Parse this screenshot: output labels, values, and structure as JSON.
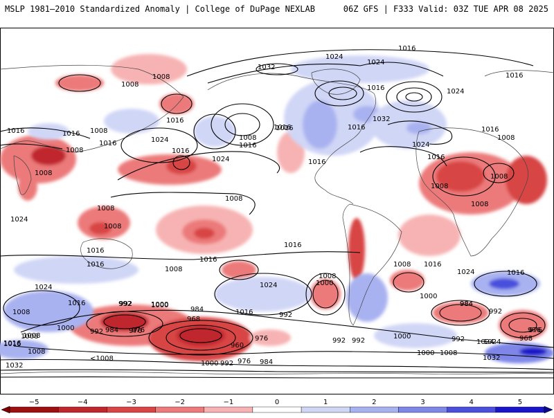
{
  "header": {
    "title": "MSLP 1981–2010 Standardized Anomaly | College of DuPage NEXLAB",
    "run_info": "06Z GFS | F333 Valid: 03Z TUE APR 08 2025"
  },
  "colorbar": {
    "ticks": [
      "−5",
      "−4",
      "−3",
      "−2",
      "−1",
      "0",
      "1",
      "2",
      "3",
      "4",
      "5"
    ],
    "colors": [
      "#9e0f0f",
      "#c0272d",
      "#d84545",
      "#ec7a7a",
      "#f7b3b3",
      "#ffffff",
      "#d0d6f6",
      "#a9b2f0",
      "#7e87e8",
      "#4a4fdd",
      "#1a16c8"
    ]
  },
  "contour_labels": [
    "1016",
    "1024",
    "1032",
    "1024",
    "1016",
    "1016",
    "1008",
    "1024",
    "1016",
    "1016",
    "1008",
    "1008",
    "1016",
    "1008",
    "1008",
    "1016",
    "1016",
    "1016",
    "1024",
    "1016",
    "1024",
    "1008",
    "1016",
    "1016",
    "1032",
    "1016",
    "1024",
    "1016",
    "1008",
    "1008",
    "1008",
    "1016",
    "1008",
    "1008",
    "1008",
    "1016",
    "1008",
    "1016",
    "1024",
    "1024",
    "1016",
    "1008",
    "1008",
    "1016",
    "1024",
    "1024",
    "1008",
    "1016",
    "1000",
    "1000",
    "1016",
    "1008",
    "1016",
    "992",
    "984",
    "968",
    "1000",
    "1008",
    "984",
    "992",
    "992",
    "976",
    "1024",
    "1000",
    "1016",
    "1008",
    "992",
    "984",
    "976",
    "1000",
    "992",
    "976",
    "984",
    "1000",
    "992",
    "976",
    "960",
    "976",
    "992",
    "992",
    "1000",
    "992",
    "984",
    "976",
    "968",
    "1024",
    "1032",
    "1016",
    "1008",
    "1000",
    "1008",
    "<1008",
    "1032",
    "1016"
  ]
}
